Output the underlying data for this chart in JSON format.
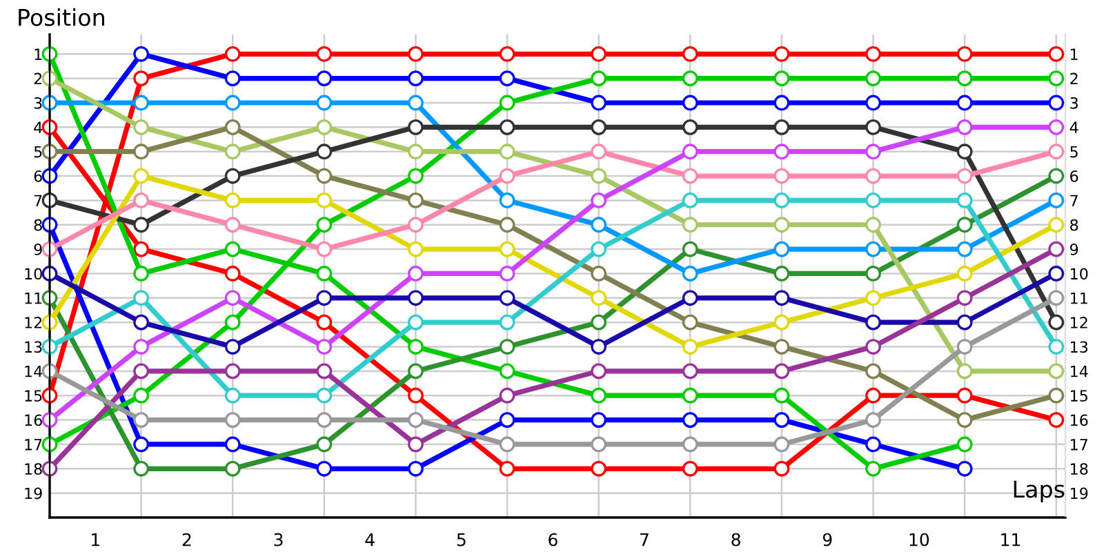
{
  "chart_data": {
    "type": "line",
    "xlabel": "Laps",
    "ylabel": "Position",
    "x": [
      0,
      1,
      2,
      3,
      4,
      5,
      6,
      7,
      8,
      9,
      10,
      11
    ],
    "xlim": [
      0,
      11.1
    ],
    "xticks": [
      {
        "value": 0,
        "label": null
      },
      {
        "value": 0.5,
        "label": "1"
      },
      {
        "value": 1,
        "label": null
      },
      {
        "value": 1.5,
        "label": "2"
      },
      {
        "value": 2,
        "label": null
      },
      {
        "value": 2.5,
        "label": "3"
      },
      {
        "value": 3,
        "label": null
      },
      {
        "value": 3.5,
        "label": "4"
      },
      {
        "value": 4,
        "label": null
      },
      {
        "value": 4.5,
        "label": "5"
      },
      {
        "value": 5,
        "label": null
      },
      {
        "value": 5.5,
        "label": "6"
      },
      {
        "value": 6,
        "label": null
      },
      {
        "value": 6.5,
        "label": "7"
      },
      {
        "value": 7,
        "label": null
      },
      {
        "value": 7.5,
        "label": "8"
      },
      {
        "value": 8,
        "label": null
      },
      {
        "value": 8.5,
        "label": "9"
      },
      {
        "value": 9,
        "label": null
      },
      {
        "value": 9.5,
        "label": "10"
      },
      {
        "value": 10,
        "label": null
      },
      {
        "value": 10.5,
        "label": "11"
      },
      {
        "value": 11,
        "label": null
      }
    ],
    "ylim": [
      20,
      0.2
    ],
    "yticks": [
      1,
      2,
      3,
      4,
      5,
      6,
      7,
      8,
      9,
      10,
      11,
      12,
      13,
      14,
      15,
      16,
      17,
      18,
      19
    ],
    "y2lim": [
      20,
      0.2
    ],
    "y2ticks": [
      1,
      2,
      3,
      4,
      5,
      6,
      7,
      8,
      9,
      10,
      11,
      12,
      13,
      14,
      15,
      16,
      17,
      18,
      19
    ],
    "grid": true,
    "marker": "circle",
    "line_style": "solid",
    "series": [
      {
        "color": "#ff0000",
        "values": [
          15,
          2,
          1,
          1,
          1,
          1,
          1,
          1,
          1,
          1,
          1,
          1
        ]
      },
      {
        "color": "#ff0000",
        "values": [
          4,
          9,
          10,
          12,
          15,
          18,
          18,
          18,
          18,
          15,
          15,
          16
        ]
      },
      {
        "color": "#0000ff",
        "values": [
          6,
          1,
          2,
          2,
          2,
          2,
          3,
          3,
          3,
          3,
          3,
          3
        ]
      },
      {
        "color": "#0000ff",
        "values": [
          8,
          17,
          17,
          18,
          18,
          16,
          16,
          16,
          16,
          17,
          18,
          null
        ]
      },
      {
        "color": "#00cc00",
        "values": [
          1,
          10,
          9,
          10,
          13,
          14,
          15,
          15,
          15,
          18,
          17,
          null
        ]
      },
      {
        "color": "#00cc00",
        "values": [
          17,
          15,
          12,
          8,
          6,
          3,
          2,
          2,
          2,
          2,
          2,
          2
        ]
      },
      {
        "color": "#2e922e",
        "values": [
          11,
          18,
          18,
          17,
          14,
          13,
          12,
          9,
          10,
          10,
          8,
          6
        ]
      },
      {
        "color": "#0099ff",
        "values": [
          3,
          3,
          3,
          3,
          3,
          7,
          8,
          10,
          9,
          9,
          9,
          7
        ]
      },
      {
        "color": "#a8c864",
        "values": [
          2,
          4,
          5,
          4,
          5,
          5,
          6,
          8,
          8,
          8,
          14,
          14
        ]
      },
      {
        "color": "#808050",
        "values": [
          5,
          5,
          4,
          6,
          7,
          8,
          10,
          12,
          13,
          14,
          16,
          15
        ]
      },
      {
        "color": "#333333",
        "values": [
          7,
          8,
          6,
          5,
          4,
          4,
          4,
          4,
          4,
          4,
          5,
          12
        ]
      },
      {
        "color": "#e0d800",
        "values": [
          12,
          6,
          7,
          7,
          9,
          9,
          11,
          13,
          12,
          11,
          10,
          8
        ]
      },
      {
        "color": "#ff88aa",
        "values": [
          9,
          7,
          8,
          9,
          8,
          6,
          5,
          6,
          6,
          6,
          6,
          5
        ]
      },
      {
        "color": "#cc44ff",
        "values": [
          16,
          13,
          11,
          13,
          10,
          10,
          7,
          5,
          5,
          5,
          4,
          4
        ]
      },
      {
        "color": "#33cccc",
        "values": [
          13,
          11,
          15,
          15,
          12,
          12,
          9,
          7,
          7,
          7,
          7,
          13
        ]
      },
      {
        "color": "#1a0aaa",
        "values": [
          10,
          12,
          13,
          11,
          11,
          11,
          13,
          11,
          11,
          12,
          12,
          10
        ]
      },
      {
        "color": "#993399",
        "values": [
          18,
          14,
          14,
          14,
          17,
          15,
          14,
          14,
          14,
          13,
          11,
          9
        ]
      },
      {
        "color": "#999999",
        "values": [
          14,
          16,
          16,
          16,
          16,
          17,
          17,
          17,
          17,
          16,
          13,
          11
        ]
      }
    ]
  }
}
